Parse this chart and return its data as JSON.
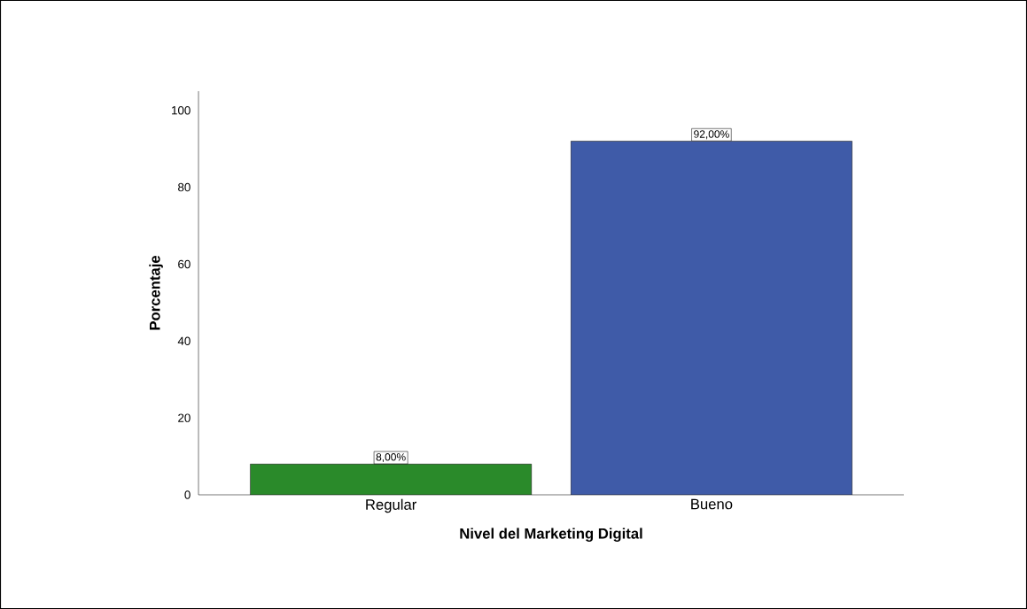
{
  "chart_data": {
    "type": "bar",
    "xlabel": "Nivel del Marketing Digital",
    "ylabel": "Porcentaje",
    "categories": [
      "Regular",
      "Bueno"
    ],
    "values": [
      8,
      92
    ],
    "colors": [
      "#2a8a2a",
      "#3f5ba8"
    ],
    "value_labels": [
      "8,00%",
      "92,00%"
    ],
    "ylim": [
      0,
      105
    ],
    "yticks": [
      0,
      20,
      40,
      60,
      80,
      100
    ],
    "grid": false
  }
}
